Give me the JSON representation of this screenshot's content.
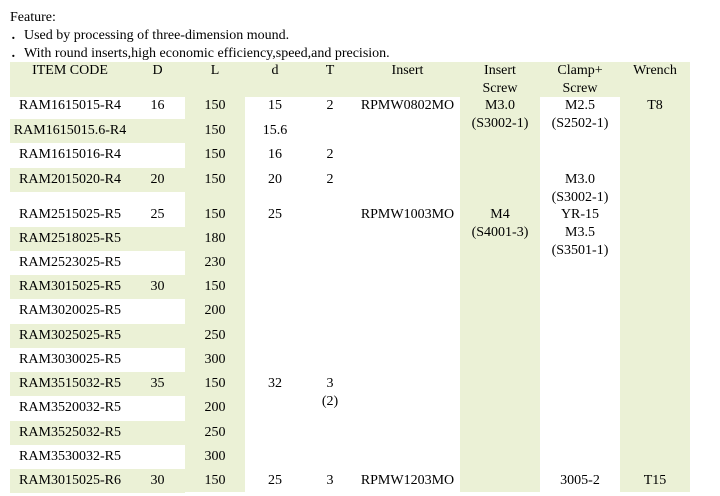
{
  "feature": {
    "title": "Feature:",
    "items": [
      "．Used by processing of three-dimension mound.",
      "．With round inserts,high economic efficiency,speed,and precision."
    ]
  },
  "table": {
    "header": [
      "ITEM CODE",
      "D",
      "L",
      "d",
      "T",
      "Insert",
      [
        "Insert",
        "Screw"
      ],
      [
        "Clamp+",
        "Screw"
      ],
      "Wrench"
    ],
    "rows": [
      [
        "RAM1615015-R4",
        "16",
        "150",
        "15",
        "2",
        "RPMW0802MO",
        [
          "M3.0",
          "(S3002-1)"
        ],
        [
          "M2.5",
          "(S2502-1)"
        ],
        "T8"
      ],
      [
        "RAM1615015.6-R4",
        null,
        "150",
        "15.6",
        null,
        null,
        null,
        null,
        null
      ],
      [
        "RAM1615016-R4",
        null,
        "150",
        "16",
        "2",
        null,
        null,
        null,
        null
      ],
      [
        "RAM2015020-R4",
        "20",
        "150",
        "20",
        "2",
        null,
        null,
        [
          "M3.0",
          "(S3002-1)"
        ],
        null
      ],
      [
        "RAM2515025-R5",
        "25",
        "150",
        "25",
        null,
        "RPMW1003MO",
        [
          "M4",
          "(S4001-3)"
        ],
        [
          "YR-15",
          "M3.5",
          "(S3501-1)"
        ],
        null
      ],
      [
        "RAM2518025-R5",
        null,
        "180",
        null,
        null,
        null,
        null,
        null,
        null
      ],
      [
        "RAM2523025-R5",
        null,
        "230",
        null,
        null,
        null,
        null,
        null,
        null
      ],
      [
        "RAM3015025-R5",
        "30",
        "150",
        null,
        null,
        null,
        null,
        null,
        null
      ],
      [
        "RAM3020025-R5",
        null,
        "200",
        null,
        null,
        null,
        null,
        null,
        null
      ],
      [
        "RAM3025025-R5",
        null,
        "250",
        null,
        null,
        null,
        null,
        null,
        null
      ],
      [
        "RAM3030025-R5",
        null,
        "300",
        null,
        null,
        null,
        null,
        null,
        null
      ],
      [
        "RAM3515032-R5",
        "35",
        "150",
        "32",
        [
          "3",
          "(2)"
        ],
        null,
        null,
        null,
        null
      ],
      [
        "RAM3520032-R5",
        null,
        "200",
        null,
        null,
        null,
        null,
        null,
        null
      ],
      [
        "RAM3525032-R5",
        null,
        "250",
        null,
        null,
        null,
        null,
        null,
        null
      ],
      [
        "RAM3530032-R5",
        null,
        "300",
        null,
        null,
        null,
        null,
        null,
        null
      ],
      [
        "RAM3015025-R6",
        "30",
        "150",
        "25",
        "3",
        "RPMW1203MO",
        null,
        "3005-2",
        "T15"
      ]
    ]
  }
}
